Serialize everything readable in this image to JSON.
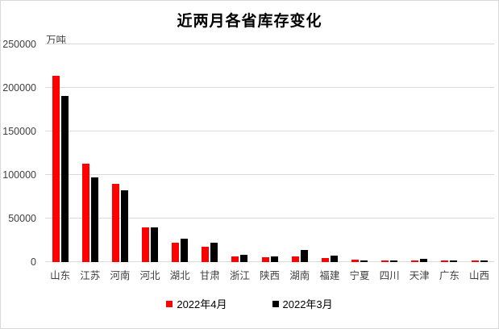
{
  "chart_data": {
    "type": "bar",
    "title": "近两月各省库存变化",
    "unit_label": "万吨",
    "categories": [
      "山东",
      "江苏",
      "河南",
      "河北",
      "湖北",
      "甘肃",
      "浙江",
      "陕西",
      "湖南",
      "福建",
      "宁夏",
      "四川",
      "天津",
      "广东",
      "山西"
    ],
    "series": [
      {
        "name": "2022年4月",
        "color": "#ff0000",
        "values": [
          214000,
          113000,
          90000,
          40000,
          22000,
          18000,
          6500,
          5500,
          6500,
          5000,
          3000,
          2000,
          2000,
          2000,
          2000
        ]
      },
      {
        "name": "2022年3月",
        "color": "#000000",
        "values": [
          191000,
          97000,
          82000,
          40000,
          26500,
          22000,
          8500,
          6500,
          13500,
          7000,
          2000,
          1500,
          3500,
          1500,
          1500
        ]
      }
    ],
    "xlabel": "",
    "ylabel": "万吨",
    "ylim": [
      0,
      250000
    ],
    "ytick_step": 50000,
    "yticks": [
      "0",
      "50000",
      "100000",
      "150000",
      "200000",
      "250000"
    ],
    "grid": true,
    "legend_position": "bottom",
    "colors": {
      "background": "#ffffff",
      "gridline": "#d9d9d9",
      "axis_text": "#3f3f3f",
      "title_text": "#000000"
    }
  }
}
